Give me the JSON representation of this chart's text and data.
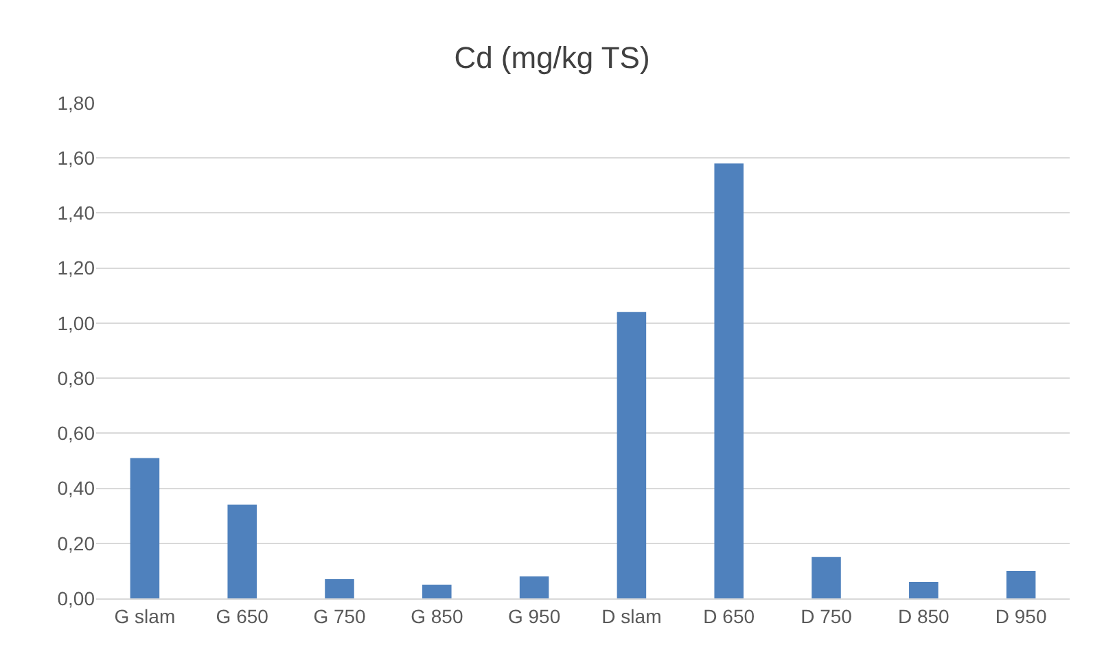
{
  "chart_data": {
    "type": "bar",
    "title": "Cd (mg/kg TS)",
    "categories": [
      "G slam",
      "G 650",
      "G 750",
      "G 850",
      "G 950",
      "D slam",
      "D 650",
      "D 750",
      "D 850",
      "D 950"
    ],
    "values": [
      0.51,
      0.34,
      0.07,
      0.05,
      0.08,
      1.04,
      1.58,
      0.15,
      0.06,
      0.1
    ],
    "color": "#4f81bd",
    "ylim": [
      0,
      1.8
    ],
    "yticks": [
      {
        "value": 0,
        "label": "0,00"
      },
      {
        "value": 0.2,
        "label": "0,20"
      },
      {
        "value": 0.4,
        "label": "0,40"
      },
      {
        "value": 0.6,
        "label": "0,60"
      },
      {
        "value": 0.8,
        "label": "0,80"
      },
      {
        "value": 1.0,
        "label": "1,00"
      },
      {
        "value": 1.2,
        "label": "1,20"
      },
      {
        "value": 1.4,
        "label": "1,40"
      },
      {
        "value": 1.6,
        "label": "1,60"
      },
      {
        "value": 1.8,
        "label": "1,80"
      }
    ],
    "grid": "y"
  }
}
